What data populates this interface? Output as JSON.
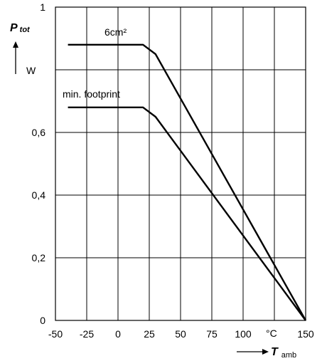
{
  "chart_data": {
    "type": "line",
    "xlim": [
      -50,
      150
    ],
    "ylim": [
      0,
      1
    ],
    "grid": true,
    "x_ticks": [
      -50,
      -25,
      0,
      25,
      50,
      75,
      100,
      150
    ],
    "x_tick_labels": [
      "-50",
      "-25",
      "0",
      "25",
      "50",
      "75",
      "100",
      "150"
    ],
    "x_unit": "°C",
    "y_ticks": [
      0,
      0.2,
      0.4,
      0.6,
      1
    ],
    "y_tick_labels": [
      "0",
      "0,2",
      "0,4",
      "0,6",
      "1"
    ],
    "y_unit": "W",
    "y_axis_symbol": "P",
    "y_axis_subscript": "tot",
    "x_axis_symbol": "T",
    "x_axis_subscript": "amb",
    "series": [
      {
        "name": "6cm²",
        "x": [
          -40,
          20,
          30,
          150
        ],
        "y": [
          0.88,
          0.88,
          0.85,
          0
        ]
      },
      {
        "name": "min. footprint",
        "x": [
          -40,
          20,
          30,
          150
        ],
        "y": [
          0.68,
          0.68,
          0.65,
          0
        ]
      }
    ]
  }
}
